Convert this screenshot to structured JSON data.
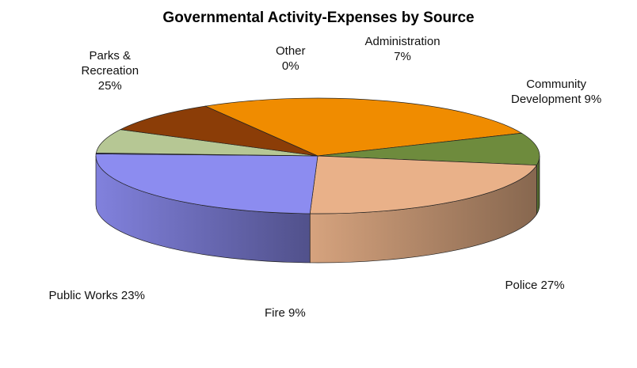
{
  "chart_data": {
    "type": "pie",
    "title": "Governmental Activity-Expenses  by Source",
    "three_d": true,
    "slices": [
      {
        "label": "Administration",
        "value": 7,
        "label_text": [
          "Administration",
          "7%"
        ],
        "color": "#B6C794"
      },
      {
        "label": "Community Development",
        "value": 9,
        "label_text": [
          "Community",
          "Development  9%"
        ],
        "color": "#8B3D07"
      },
      {
        "label": "Police",
        "value": 27,
        "label_text": [
          "Police 27%"
        ],
        "color": "#F08C00"
      },
      {
        "label": "Fire",
        "value": 9,
        "label_text": [
          "Fire 9%"
        ],
        "color": "#6E8B3D"
      },
      {
        "label": "Public Works",
        "value": 23,
        "label_text": [
          "Public Works 23%"
        ],
        "color": "#E9B189"
      },
      {
        "label": "Parks & Recreation",
        "value": 25,
        "label_text": [
          "Parks &",
          "Recreation",
          "25%"
        ],
        "color": "#8C8CF0"
      },
      {
        "label": "Other",
        "value": 0,
        "label_text": [
          "Other",
          "0%"
        ],
        "color": "#4A4A9A"
      }
    ]
  }
}
